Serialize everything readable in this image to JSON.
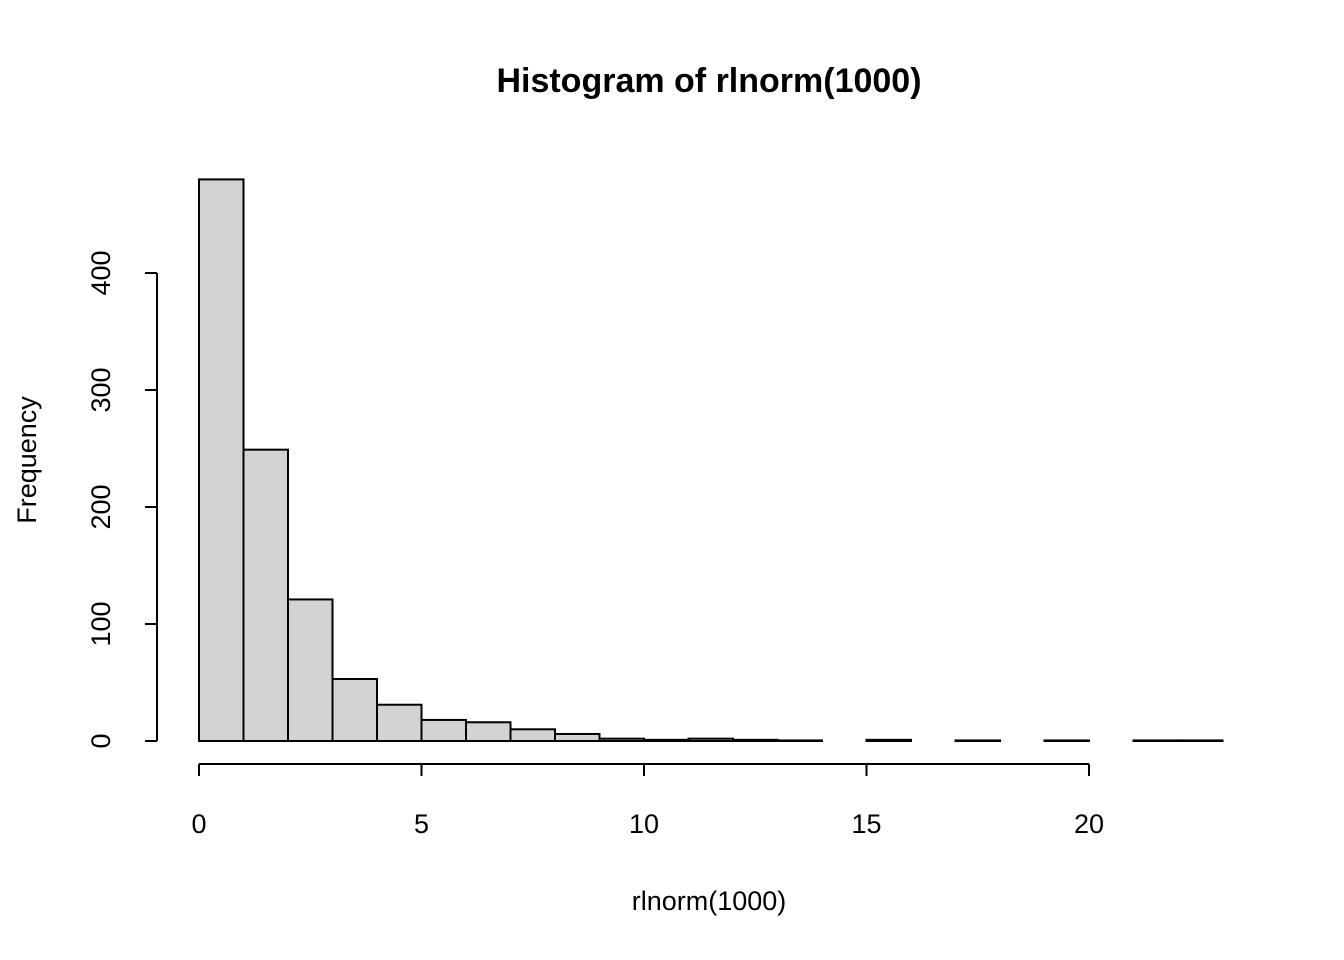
{
  "chart_data": {
    "type": "bar",
    "title": "Histogram of rlnorm(1000)",
    "xlabel": "rlnorm(1000)",
    "ylabel": "Frequency",
    "bin_width": 1,
    "bins": [
      {
        "start": 0,
        "end": 1,
        "count": 480
      },
      {
        "start": 1,
        "end": 2,
        "count": 249
      },
      {
        "start": 2,
        "end": 3,
        "count": 121
      },
      {
        "start": 3,
        "end": 4,
        "count": 53
      },
      {
        "start": 4,
        "end": 5,
        "count": 31
      },
      {
        "start": 5,
        "end": 6,
        "count": 18
      },
      {
        "start": 6,
        "end": 7,
        "count": 16
      },
      {
        "start": 7,
        "end": 8,
        "count": 10
      },
      {
        "start": 8,
        "end": 9,
        "count": 6
      },
      {
        "start": 9,
        "end": 10,
        "count": 2
      },
      {
        "start": 10,
        "end": 11,
        "count": 1
      },
      {
        "start": 11,
        "end": 12,
        "count": 2
      },
      {
        "start": 12,
        "end": 13,
        "count": 1
      },
      {
        "start": 13,
        "end": 14,
        "count": 0.5
      },
      {
        "start": 14,
        "end": 15,
        "count": 0
      },
      {
        "start": 15,
        "end": 16,
        "count": 1
      },
      {
        "start": 16,
        "end": 17,
        "count": 0
      },
      {
        "start": 17,
        "end": 18,
        "count": 0.5
      },
      {
        "start": 18,
        "end": 19,
        "count": 0
      },
      {
        "start": 19,
        "end": 20,
        "count": 0.5
      },
      {
        "start": 20,
        "end": 21,
        "count": 0
      },
      {
        "start": 21,
        "end": 22,
        "count": 0.5
      },
      {
        "start": 22,
        "end": 23,
        "count": 0.5
      }
    ],
    "x_ticks": [
      0,
      5,
      10,
      15,
      20
    ],
    "y_ticks": [
      0,
      100,
      200,
      300,
      400
    ],
    "xlim": [
      0,
      23
    ],
    "ylim": [
      0,
      480
    ],
    "bar_color": "#d3d3d3",
    "grid": false,
    "legend": "none"
  }
}
